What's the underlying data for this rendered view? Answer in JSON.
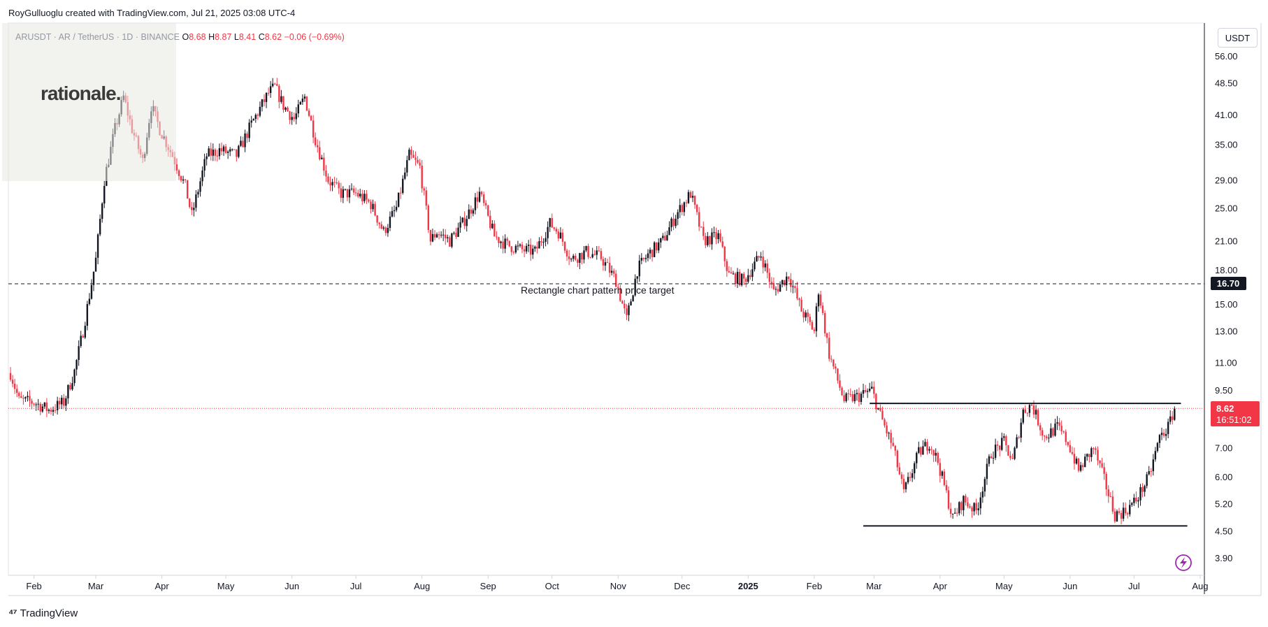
{
  "header": {
    "credit": "RoyGulluoglu created with TradingView.com, Jul 21, 2025 03:08 UTC-4"
  },
  "symbol": {
    "name": "ARUSDT · AR / TetherUS · 1D · BINANCE",
    "open_label": "O",
    "open": "8.68",
    "high_label": "H",
    "high": "8.87",
    "low_label": "L",
    "low": "8.41",
    "close_label": "C",
    "close": "8.62",
    "change": "−0.06 (−0.69%)"
  },
  "watermark": "rationale.",
  "currency": "USDT",
  "footer": {
    "brand": "TradingView"
  },
  "colors": {
    "up": "#131722",
    "down": "#f23645",
    "price_line": "#f23645",
    "badge": "#f23645"
  },
  "chart_data": {
    "type": "candlestick",
    "y_scale": "log",
    "y_ticks": [
      "56.00",
      "48.50",
      "41.00",
      "35.00",
      "29.00",
      "25.00",
      "21.00",
      "18.00",
      "15.00",
      "13.00",
      "11.00",
      "9.50",
      "7.00",
      "6.00",
      "5.20",
      "4.50",
      "3.90"
    ],
    "x_ticks": [
      "Feb",
      "Mar",
      "Apr",
      "May",
      "Jun",
      "Jul",
      "Aug",
      "Sep",
      "Oct",
      "Nov",
      "Dec",
      "2025",
      "Feb",
      "Mar",
      "Apr",
      "May",
      "Jun",
      "Jul",
      "Aug"
    ],
    "x_ticks_bold": [
      "2025"
    ],
    "last_price": "8.62",
    "countdown": "16:51:02",
    "target_label": "16.70",
    "annotation": "Rectangle chart pattern price target",
    "levels": [
      {
        "name": "price-target",
        "value": 16.7
      },
      {
        "name": "rectangle-top",
        "value": 8.85
      },
      {
        "name": "rectangle-bottom",
        "value": 4.62
      }
    ],
    "series": [
      {
        "date": "2024-01-21",
        "close": 10.4
      },
      {
        "date": "2024-01-25",
        "close": 9.0
      },
      {
        "date": "2024-02-01",
        "close": 8.9
      },
      {
        "date": "2024-02-08",
        "close": 8.55
      },
      {
        "date": "2024-02-15",
        "close": 8.9
      },
      {
        "date": "2024-02-20",
        "close": 10.5
      },
      {
        "date": "2024-02-24",
        "close": 13.0
      },
      {
        "date": "2024-03-01",
        "close": 19.0
      },
      {
        "date": "2024-03-05",
        "close": 29.0
      },
      {
        "date": "2024-03-10",
        "close": 38.0
      },
      {
        "date": "2024-03-14",
        "close": 45.0
      },
      {
        "date": "2024-03-18",
        "close": 38.0
      },
      {
        "date": "2024-03-23",
        "close": 32.0
      },
      {
        "date": "2024-03-27",
        "close": 43.0
      },
      {
        "date": "2024-03-31",
        "close": 38.0
      },
      {
        "date": "2024-04-06",
        "close": 33.0
      },
      {
        "date": "2024-04-12",
        "close": 28.0
      },
      {
        "date": "2024-04-15",
        "close": 24.0
      },
      {
        "date": "2024-04-22",
        "close": 33.0
      },
      {
        "date": "2024-04-28",
        "close": 34.0
      },
      {
        "date": "2024-05-06",
        "close": 33.0
      },
      {
        "date": "2024-05-13",
        "close": 39.0
      },
      {
        "date": "2024-05-21",
        "close": 46.0
      },
      {
        "date": "2024-05-24",
        "close": 47.5
      },
      {
        "date": "2024-05-28",
        "close": 43.0
      },
      {
        "date": "2024-06-02",
        "close": 40.0
      },
      {
        "date": "2024-06-07",
        "close": 45.0
      },
      {
        "date": "2024-06-12",
        "close": 36.0
      },
      {
        "date": "2024-06-18",
        "close": 29.0
      },
      {
        "date": "2024-06-24",
        "close": 27.0
      },
      {
        "date": "2024-07-01",
        "close": 27.0
      },
      {
        "date": "2024-07-08",
        "close": 25.5
      },
      {
        "date": "2024-07-14",
        "close": 22.0
      },
      {
        "date": "2024-07-20",
        "close": 25.0
      },
      {
        "date": "2024-07-26",
        "close": 33.0
      },
      {
        "date": "2024-07-31",
        "close": 31.0
      },
      {
        "date": "2024-08-05",
        "close": 21.0
      },
      {
        "date": "2024-08-08",
        "close": 22.0
      },
      {
        "date": "2024-08-14",
        "close": 21.0
      },
      {
        "date": "2024-08-20",
        "close": 23.0
      },
      {
        "date": "2024-08-28",
        "close": 27.0
      },
      {
        "date": "2024-09-04",
        "close": 21.5
      },
      {
        "date": "2024-09-10",
        "close": 20.5
      },
      {
        "date": "2024-09-17",
        "close": 20.0
      },
      {
        "date": "2024-09-23",
        "close": 19.8
      },
      {
        "date": "2024-09-30",
        "close": 23.0
      },
      {
        "date": "2024-10-04",
        "close": 22.0
      },
      {
        "date": "2024-10-10",
        "close": 19.0
      },
      {
        "date": "2024-10-17",
        "close": 19.8
      },
      {
        "date": "2024-10-24",
        "close": 19.2
      },
      {
        "date": "2024-10-31",
        "close": 17.0
      },
      {
        "date": "2024-11-05",
        "close": 13.8
      },
      {
        "date": "2024-11-10",
        "close": 18.0
      },
      {
        "date": "2024-11-15",
        "close": 19.5
      },
      {
        "date": "2024-11-22",
        "close": 21.0
      },
      {
        "date": "2024-11-28",
        "close": 24.0
      },
      {
        "date": "2024-12-05",
        "close": 27.0
      },
      {
        "date": "2024-12-11",
        "close": 21.0
      },
      {
        "date": "2024-12-18",
        "close": 21.5
      },
      {
        "date": "2024-12-23",
        "close": 17.5
      },
      {
        "date": "2024-12-30",
        "close": 17.0
      },
      {
        "date": "2025-01-07",
        "close": 19.5
      },
      {
        "date": "2025-01-13",
        "close": 16.0
      },
      {
        "date": "2025-01-20",
        "close": 17.5
      },
      {
        "date": "2025-01-26",
        "close": 14.5
      },
      {
        "date": "2025-02-01",
        "close": 13.0
      },
      {
        "date": "2025-02-03",
        "close": 16.2
      },
      {
        "date": "2025-02-08",
        "close": 11.5
      },
      {
        "date": "2025-02-15",
        "close": 9.0
      },
      {
        "date": "2025-02-22",
        "close": 9.2
      },
      {
        "date": "2025-02-28",
        "close": 9.5
      },
      {
        "date": "2025-03-04",
        "close": 8.3
      },
      {
        "date": "2025-03-10",
        "close": 7.0
      },
      {
        "date": "2025-03-15",
        "close": 5.5
      },
      {
        "date": "2025-03-22",
        "close": 6.8
      },
      {
        "date": "2025-03-27",
        "close": 7.2
      },
      {
        "date": "2025-03-31",
        "close": 6.5
      },
      {
        "date": "2025-04-07",
        "close": 4.8
      },
      {
        "date": "2025-04-12",
        "close": 5.3
      },
      {
        "date": "2025-04-18",
        "close": 5.0
      },
      {
        "date": "2025-04-25",
        "close": 6.8
      },
      {
        "date": "2025-05-01",
        "close": 7.2
      },
      {
        "date": "2025-05-05",
        "close": 6.5
      },
      {
        "date": "2025-05-10",
        "close": 8.5
      },
      {
        "date": "2025-05-14",
        "close": 8.8
      },
      {
        "date": "2025-05-20",
        "close": 7.4
      },
      {
        "date": "2025-05-26",
        "close": 7.8
      },
      {
        "date": "2025-05-31",
        "close": 7.2
      },
      {
        "date": "2025-06-05",
        "close": 6.2
      },
      {
        "date": "2025-06-12",
        "close": 7.0
      },
      {
        "date": "2025-06-17",
        "close": 5.9
      },
      {
        "date": "2025-06-22",
        "close": 4.9
      },
      {
        "date": "2025-06-27",
        "close": 5.0
      },
      {
        "date": "2025-07-02",
        "close": 5.3
      },
      {
        "date": "2025-07-08",
        "close": 6.0
      },
      {
        "date": "2025-07-13",
        "close": 7.4
      },
      {
        "date": "2025-07-17",
        "close": 7.8
      },
      {
        "date": "2025-07-20",
        "close": 8.62
      }
    ]
  }
}
